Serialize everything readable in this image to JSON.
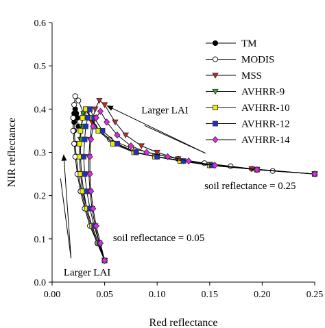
{
  "chart_data": {
    "type": "line",
    "xlabel": "Red reflectance",
    "ylabel": "NIR reflectance",
    "xlim": [
      0.0,
      0.25
    ],
    "ylim": [
      0.0,
      0.6
    ],
    "xticks": [
      "0.00",
      "0.05",
      "0.10",
      "0.15",
      "0.20",
      "0.25"
    ],
    "yticks": [
      "0.0",
      "0.1",
      "0.2",
      "0.3",
      "0.4",
      "0.5",
      "0.6"
    ],
    "grid": false,
    "legend": "top-right",
    "legend_entries": [
      "TM",
      "MODIS",
      "MSS",
      "AVHRR-9",
      "AVHRR-10",
      "AVHRR-12",
      "AVHRR-14"
    ],
    "series": [
      {
        "name": "TM",
        "color": "#000000",
        "marker": "circle",
        "fill": "#000000",
        "x": [
          0.05,
          0.043,
          0.037,
          0.032,
          0.028,
          0.025,
          0.023,
          0.022,
          0.021,
          0.021,
          0.021,
          0.022,
          0.023,
          0.024,
          0.025
        ],
        "y": [
          0.05,
          0.09,
          0.13,
          0.17,
          0.21,
          0.25,
          0.29,
          0.32,
          0.35,
          0.37,
          0.39,
          0.4,
          0.39,
          0.38,
          0.36
        ]
      },
      {
        "name": "MODIS",
        "color": "#000000",
        "marker": "circle",
        "fill": "#ffffff",
        "x": [
          0.05,
          0.043,
          0.036,
          0.031,
          0.027,
          0.024,
          0.022,
          0.021,
          0.02,
          0.02,
          0.021,
          0.022,
          0.025,
          0.03,
          0.04,
          0.055,
          0.075,
          0.1,
          0.12,
          0.145,
          0.17,
          0.19,
          0.21,
          0.25
        ],
        "y": [
          0.05,
          0.09,
          0.13,
          0.17,
          0.21,
          0.25,
          0.29,
          0.32,
          0.35,
          0.38,
          0.41,
          0.43,
          0.42,
          0.39,
          0.36,
          0.33,
          0.31,
          0.295,
          0.285,
          0.275,
          0.268,
          0.262,
          0.257,
          0.25
        ]
      },
      {
        "name": "MSS",
        "color": "#cc2222",
        "marker": "triangle-down",
        "fill": "#cc2222",
        "x": [
          0.05,
          0.045,
          0.041,
          0.038,
          0.036,
          0.035,
          0.035,
          0.036,
          0.038,
          0.041,
          0.045,
          0.05,
          0.06,
          0.07,
          0.085,
          0.1,
          0.12,
          0.15,
          0.19,
          0.25
        ],
        "y": [
          0.05,
          0.09,
          0.13,
          0.17,
          0.21,
          0.25,
          0.29,
          0.33,
          0.37,
          0.4,
          0.42,
          0.41,
          0.37,
          0.34,
          0.315,
          0.3,
          0.285,
          0.272,
          0.262,
          0.25
        ]
      },
      {
        "name": "AVHRR-9",
        "color": "#22bb22",
        "marker": "triangle-down",
        "fill": "#22bb22",
        "x": [
          0.05,
          0.044,
          0.038,
          0.033,
          0.03,
          0.028,
          0.027,
          0.027,
          0.028,
          0.03,
          0.033,
          0.037,
          0.045,
          0.06,
          0.08,
          0.1,
          0.125,
          0.15,
          0.195,
          0.25
        ],
        "y": [
          0.05,
          0.09,
          0.13,
          0.17,
          0.21,
          0.25,
          0.29,
          0.33,
          0.36,
          0.39,
          0.4,
          0.38,
          0.35,
          0.32,
          0.3,
          0.29,
          0.28,
          0.27,
          0.26,
          0.25
        ]
      },
      {
        "name": "AVHRR-10",
        "color": "#eeee00",
        "marker": "square",
        "fill": "#eeee00",
        "x": [
          0.05,
          0.044,
          0.038,
          0.033,
          0.029,
          0.027,
          0.026,
          0.026,
          0.027,
          0.029,
          0.032,
          0.036,
          0.044,
          0.058,
          0.078,
          0.098,
          0.122,
          0.15,
          0.195,
          0.25
        ],
        "y": [
          0.05,
          0.09,
          0.13,
          0.17,
          0.21,
          0.25,
          0.29,
          0.32,
          0.35,
          0.38,
          0.4,
          0.38,
          0.35,
          0.32,
          0.3,
          0.29,
          0.28,
          0.27,
          0.26,
          0.25
        ]
      },
      {
        "name": "AVHRR-12",
        "color": "#1e2fcc",
        "marker": "square",
        "fill": "#1e2fcc",
        "x": [
          0.05,
          0.045,
          0.04,
          0.036,
          0.033,
          0.031,
          0.03,
          0.031,
          0.032,
          0.034,
          0.036,
          0.04,
          0.048,
          0.062,
          0.08,
          0.1,
          0.125,
          0.152,
          0.195,
          0.25
        ],
        "y": [
          0.05,
          0.09,
          0.13,
          0.17,
          0.21,
          0.25,
          0.29,
          0.33,
          0.36,
          0.38,
          0.4,
          0.38,
          0.35,
          0.32,
          0.3,
          0.29,
          0.28,
          0.27,
          0.26,
          0.25
        ]
      },
      {
        "name": "AVHRR-14",
        "color": "#ee22ee",
        "marker": "diamond",
        "fill": "#ee22ee",
        "x": [
          0.05,
          0.046,
          0.042,
          0.039,
          0.037,
          0.036,
          0.036,
          0.037,
          0.039,
          0.042,
          0.046,
          0.052,
          0.062,
          0.075,
          0.09,
          0.11,
          0.13,
          0.155,
          0.195,
          0.25
        ],
        "y": [
          0.05,
          0.09,
          0.13,
          0.17,
          0.21,
          0.25,
          0.29,
          0.33,
          0.36,
          0.38,
          0.395,
          0.37,
          0.34,
          0.315,
          0.3,
          0.29,
          0.28,
          0.27,
          0.26,
          0.25
        ]
      }
    ],
    "annotations": [
      {
        "text": "Larger LAI",
        "x": 0.085,
        "y": 0.39
      },
      {
        "text": "soil reflectance = 0.25",
        "x": 0.145,
        "y": 0.215
      },
      {
        "text": "soil reflectance = 0.05",
        "x": 0.058,
        "y": 0.095
      },
      {
        "text": "Larger LAI",
        "x": 0.011,
        "y": 0.015
      }
    ]
  }
}
